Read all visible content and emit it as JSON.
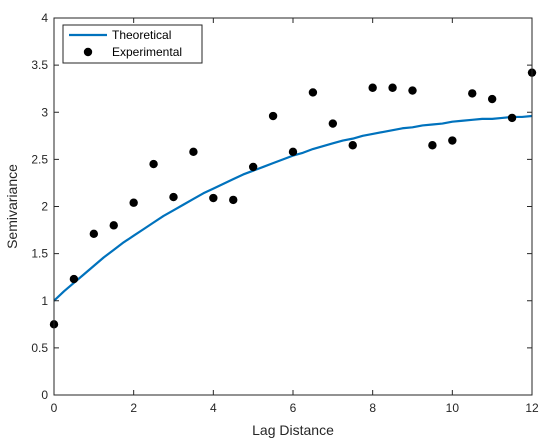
{
  "chart_data": {
    "type": "line",
    "xlabel": "Lag Distance",
    "ylabel": "Semivariance",
    "xlim": [
      0,
      12
    ],
    "ylim": [
      0,
      4
    ],
    "xticks": [
      0,
      2,
      4,
      6,
      8,
      10,
      12
    ],
    "yticks": [
      0,
      0.5,
      1,
      1.5,
      2,
      2.5,
      3,
      3.5,
      4
    ],
    "grid": true,
    "legend_position": "top-left",
    "series": [
      {
        "name": "Theoretical",
        "style": "line",
        "color": "#0072BD",
        "x": [
          0,
          0.25,
          0.5,
          0.75,
          1,
          1.25,
          1.5,
          1.75,
          2,
          2.25,
          2.5,
          2.75,
          3,
          3.25,
          3.5,
          3.75,
          4,
          4.25,
          4.5,
          4.75,
          5,
          5.25,
          5.5,
          5.75,
          6,
          6.25,
          6.5,
          6.75,
          7,
          7.25,
          7.5,
          7.75,
          8,
          8.25,
          8.5,
          8.75,
          9,
          9.25,
          9.5,
          9.75,
          10,
          10.25,
          10.5,
          10.75,
          11,
          11.25,
          11.5,
          11.75,
          12
        ],
        "y": [
          1.0,
          1.1,
          1.19,
          1.28,
          1.37,
          1.46,
          1.54,
          1.62,
          1.69,
          1.76,
          1.83,
          1.9,
          1.96,
          2.02,
          2.08,
          2.14,
          2.19,
          2.24,
          2.29,
          2.34,
          2.38,
          2.42,
          2.46,
          2.5,
          2.54,
          2.57,
          2.61,
          2.64,
          2.67,
          2.7,
          2.72,
          2.75,
          2.77,
          2.79,
          2.81,
          2.83,
          2.84,
          2.86,
          2.87,
          2.88,
          2.9,
          2.91,
          2.92,
          2.93,
          2.93,
          2.94,
          2.95,
          2.95,
          2.96
        ]
      },
      {
        "name": "Experimental",
        "style": "scatter",
        "color": "#000000",
        "x": [
          0,
          0.5,
          1,
          1.5,
          2,
          2.5,
          3,
          3.5,
          4,
          4.5,
          5,
          5.5,
          6,
          6.5,
          7,
          7.5,
          8,
          8.5,
          9,
          9.5,
          10,
          10.5,
          11,
          11.5,
          12
        ],
        "y": [
          0.75,
          1.23,
          1.71,
          1.8,
          2.04,
          2.45,
          2.1,
          2.58,
          2.09,
          2.07,
          2.42,
          2.96,
          2.58,
          3.21,
          2.88,
          2.65,
          3.26,
          3.26,
          3.23,
          2.65,
          2.7,
          3.2,
          3.14,
          2.94,
          3.42
        ]
      }
    ]
  }
}
